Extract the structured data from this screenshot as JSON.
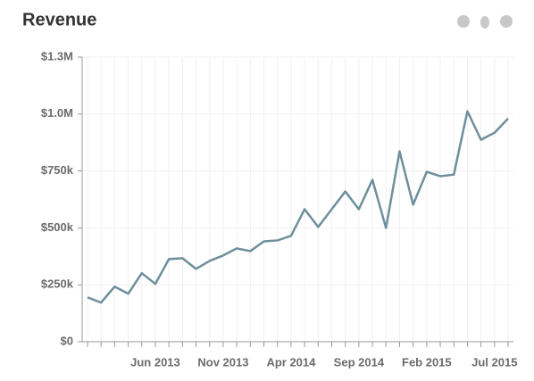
{
  "chart_data": {
    "type": "line",
    "title": "Revenue",
    "categories": [
      null,
      null,
      null,
      null,
      null,
      "Jun 2013",
      null,
      null,
      null,
      null,
      "Nov 2013",
      null,
      null,
      null,
      null,
      "Apr 2014",
      null,
      null,
      null,
      null,
      "Sep 2014",
      null,
      null,
      null,
      null,
      "Feb 2015",
      null,
      null,
      null,
      null,
      "Jul 2015",
      null
    ],
    "series": [
      {
        "name": "Revenue",
        "color": "#6e8f9c",
        "values": [
          195000,
          172000,
          242000,
          211000,
          301000,
          254000,
          363000,
          367000,
          320000,
          355000,
          379000,
          410000,
          398000,
          441000,
          445000,
          465000,
          582000,
          504000,
          582000,
          660000,
          582000,
          711000,
          500000,
          836000,
          602000,
          746000,
          727000,
          734000,
          1012000,
          887000,
          918000,
          980000
        ]
      }
    ],
    "ylim": [
      0,
      1250000
    ],
    "yticks": [
      {
        "value": 0,
        "label": "$0"
      },
      {
        "value": 250000,
        "label": "$250k"
      },
      {
        "value": 500000,
        "label": "$500k"
      },
      {
        "value": 750000,
        "label": "$750k"
      },
      {
        "value": 1000000,
        "label": "$1.0M"
      },
      {
        "value": 1250000,
        "label": "$1.3M"
      }
    ],
    "grid": true
  }
}
